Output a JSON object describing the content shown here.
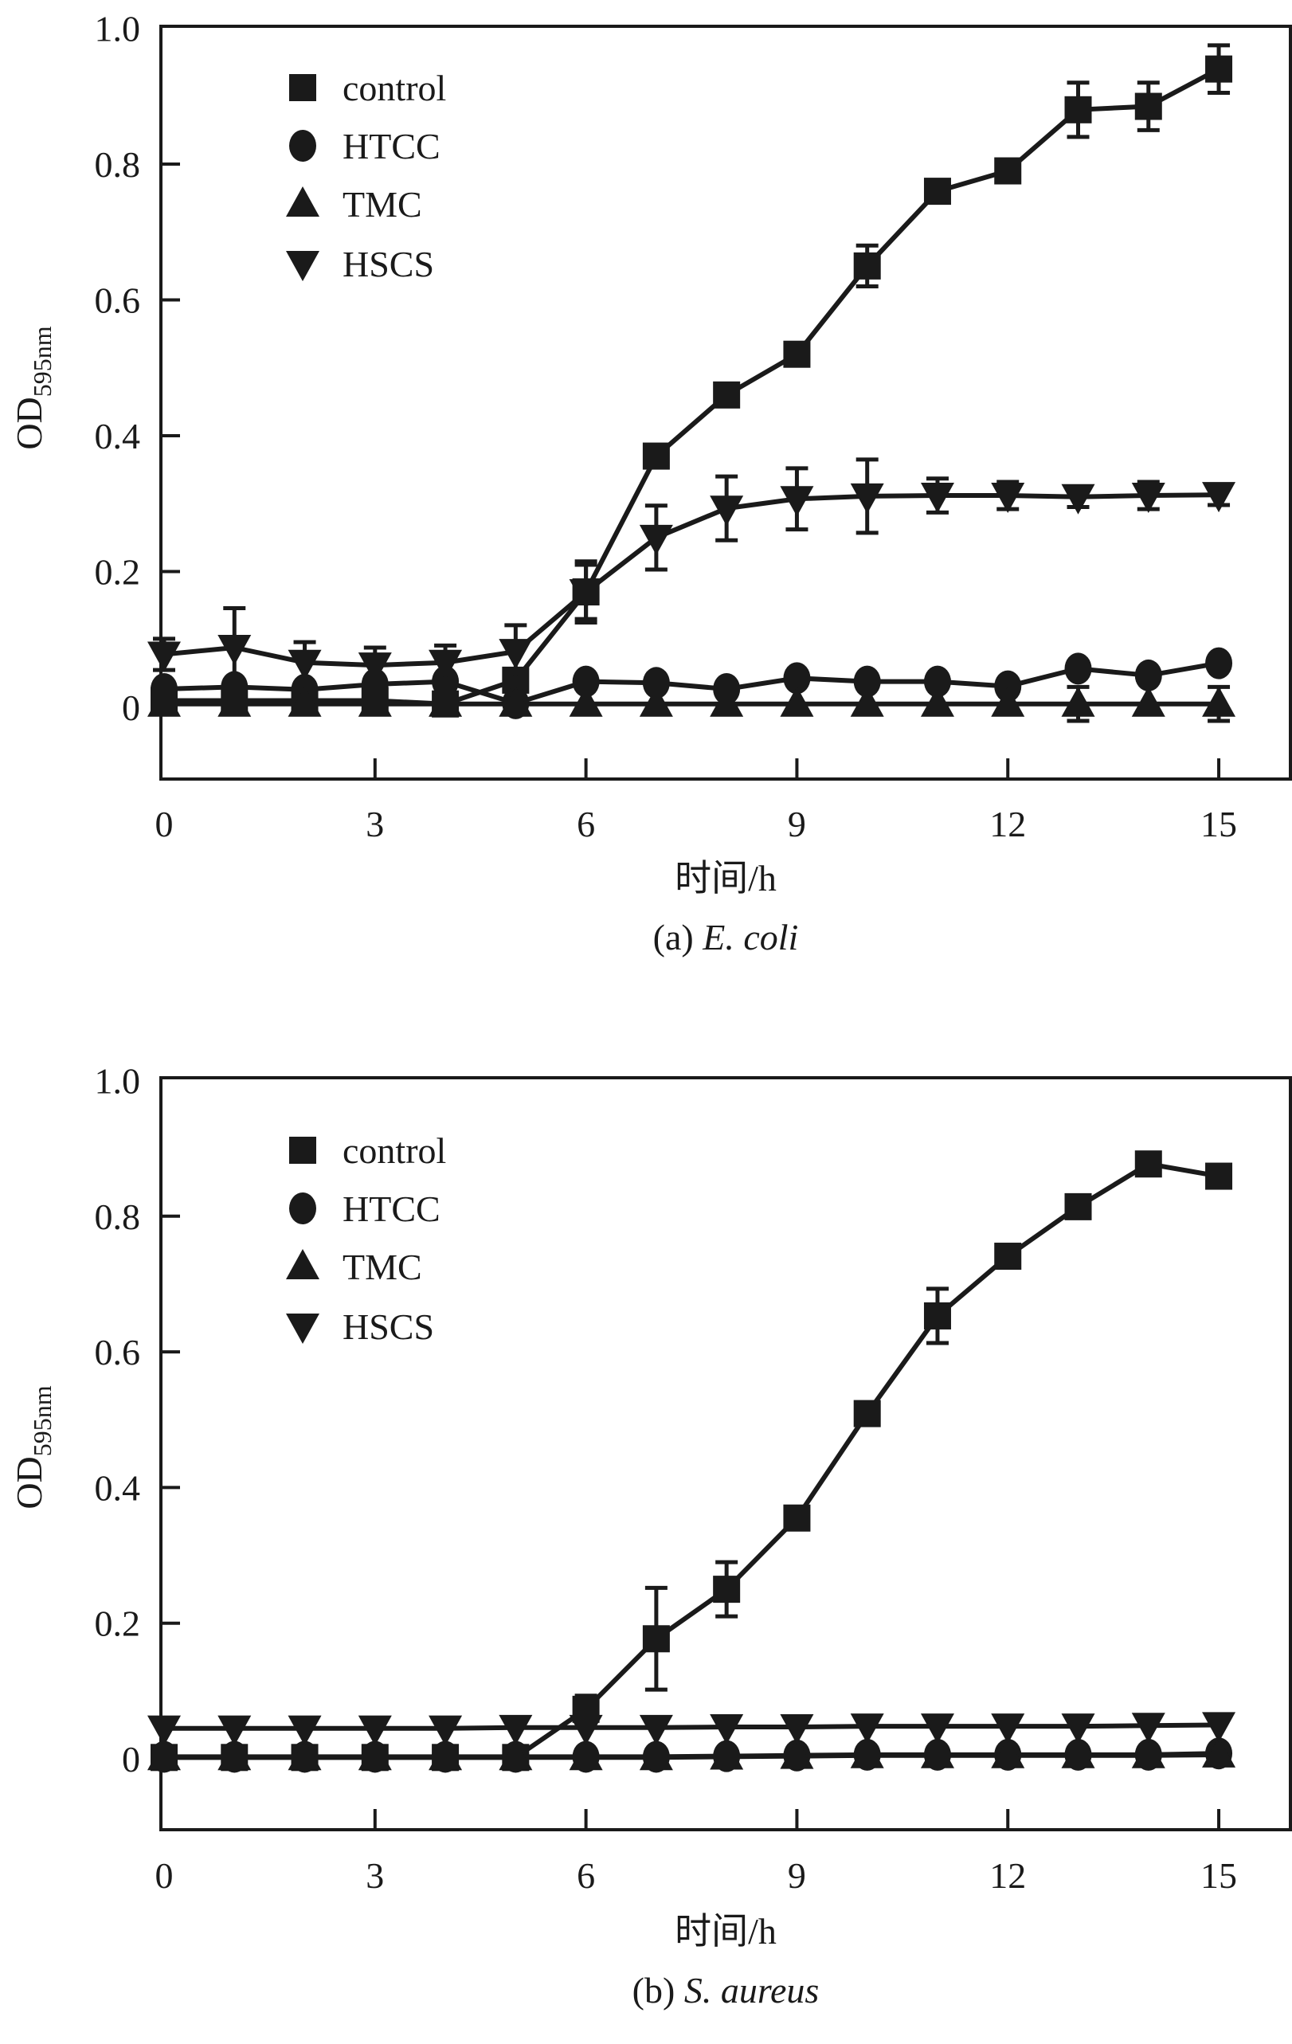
{
  "chart_data": [
    {
      "type": "line",
      "panel": "a",
      "title": "",
      "caption_prefix": "(a)",
      "caption_species": "E. coli",
      "xlabel": "时间/h",
      "ylabel": "OD",
      "ylabel_subscript": "595nm",
      "xlim": [
        0,
        16
      ],
      "ylim": [
        -0.1,
        1.0
      ],
      "xticks": [
        0,
        3,
        6,
        9,
        12,
        15
      ],
      "xtick_labels": [
        "0",
        "3",
        "6",
        "9",
        "12",
        "15"
      ],
      "yticks": [
        0,
        0.2,
        0.4,
        0.6,
        0.8,
        1.0
      ],
      "ytick_labels": [
        "0",
        "0.2",
        "0.4",
        "0.6",
        "0.8",
        "1.0"
      ],
      "grid": false,
      "legend_position": "top-left",
      "x": [
        0,
        1,
        2,
        3,
        4,
        5,
        6,
        7,
        8,
        9,
        10,
        11,
        12,
        13,
        14,
        15
      ],
      "series": [
        {
          "name": "control",
          "marker": "square",
          "values": [
            0.01,
            0.01,
            0.01,
            0.01,
            0.005,
            0.04,
            0.17,
            0.37,
            0.46,
            0.52,
            0.65,
            0.76,
            0.79,
            0.88,
            0.885,
            0.94
          ],
          "errors": [
            0.01,
            0.01,
            0.01,
            0.01,
            0.01,
            0.01,
            0.04,
            0.0,
            0.0,
            0.0,
            0.03,
            0.0,
            0.0,
            0.04,
            0.035,
            0.035
          ]
        },
        {
          "name": "HTCC",
          "marker": "circle",
          "values": [
            0.027,
            0.03,
            0.026,
            0.034,
            0.038,
            0.006,
            0.038,
            0.036,
            0.027,
            0.043,
            0.038,
            0.038,
            0.031,
            0.057,
            0.047,
            0.065
          ],
          "errors": [
            0.01,
            0.0,
            0.01,
            0.0,
            0.0,
            0.0,
            0.0,
            0.0,
            0.0,
            0.0,
            0.008,
            0.0,
            0.0,
            0.01,
            0.008,
            0.0
          ]
        },
        {
          "name": "TMC",
          "marker": "triangle-up",
          "values": [
            0.005,
            0.005,
            0.005,
            0.005,
            0.005,
            0.005,
            0.005,
            0.005,
            0.005,
            0.005,
            0.005,
            0.005,
            0.005,
            0.005,
            0.005,
            0.005
          ],
          "errors": [
            0.0,
            0.0,
            0.0,
            0.0,
            0.0,
            0.0,
            0.0,
            0.0,
            0.0,
            0.0,
            0.0,
            0.0,
            0.0,
            0.025,
            0.0,
            0.025
          ]
        },
        {
          "name": "HSCS",
          "marker": "triangle-down",
          "values": [
            0.078,
            0.088,
            0.066,
            0.062,
            0.066,
            0.082,
            0.17,
            0.25,
            0.293,
            0.307,
            0.311,
            0.312,
            0.312,
            0.31,
            0.312,
            0.313
          ],
          "errors": [
            0.023,
            0.058,
            0.03,
            0.026,
            0.025,
            0.039,
            0.045,
            0.047,
            0.047,
            0.045,
            0.054,
            0.025,
            0.02,
            0.015,
            0.02,
            0.015
          ]
        }
      ]
    },
    {
      "type": "line",
      "panel": "b",
      "title": "",
      "caption_prefix": "(b)",
      "caption_species": "S. aureus",
      "xlabel": "时间/h",
      "ylabel": "OD",
      "ylabel_subscript": "595nm",
      "xlim": [
        0,
        16
      ],
      "ylim": [
        -0.1,
        1.0
      ],
      "xticks": [
        0,
        3,
        6,
        9,
        12,
        15
      ],
      "xtick_labels": [
        "0",
        "3",
        "6",
        "9",
        "12",
        "15"
      ],
      "yticks": [
        0,
        0.2,
        0.4,
        0.6,
        0.8,
        1.0
      ],
      "ytick_labels": [
        "0",
        "0.2",
        "0.4",
        "0.6",
        "0.8",
        "1.0"
      ],
      "grid": false,
      "legend_position": "top-left",
      "x": [
        0,
        1,
        2,
        3,
        4,
        5,
        6,
        7,
        8,
        9,
        10,
        11,
        12,
        13,
        14,
        15
      ],
      "series": [
        {
          "name": "control",
          "marker": "square",
          "values": [
            0.002,
            0.002,
            0.002,
            0.002,
            0.002,
            0.002,
            0.073,
            0.177,
            0.25,
            0.355,
            0.509,
            0.653,
            0.741,
            0.814,
            0.877,
            0.859
          ],
          "errors": [
            0.0,
            0.0,
            0.0,
            0.0,
            0.0,
            0.0,
            0.02,
            0.075,
            0.04,
            0.0,
            0.0,
            0.04,
            0.0,
            0.0,
            0.0,
            0.0
          ]
        },
        {
          "name": "HTCC",
          "marker": "circle",
          "values": [
            0.003,
            0.003,
            0.003,
            0.003,
            0.003,
            0.003,
            0.003,
            0.003,
            0.004,
            0.005,
            0.006,
            0.006,
            0.006,
            0.006,
            0.006,
            0.008
          ],
          "errors": [
            0.0,
            0.0,
            0.0,
            0.0,
            0.0,
            0.0,
            0.0,
            0.0,
            0.0,
            0.0,
            0.0,
            0.0,
            0.0,
            0.0,
            0.0,
            0.0
          ]
        },
        {
          "name": "TMC",
          "marker": "triangle-up",
          "values": [
            0.002,
            0.002,
            0.002,
            0.002,
            0.002,
            0.002,
            0.002,
            0.002,
            0.003,
            0.004,
            0.005,
            0.005,
            0.005,
            0.005,
            0.005,
            0.006
          ],
          "errors": [
            0.0,
            0.0,
            0.0,
            0.0,
            0.0,
            0.0,
            0.0,
            0.0,
            0.0,
            0.0,
            0.0,
            0.0,
            0.0,
            0.0,
            0.0,
            0.0
          ]
        },
        {
          "name": "HSCS",
          "marker": "triangle-down",
          "values": [
            0.045,
            0.045,
            0.045,
            0.045,
            0.045,
            0.046,
            0.046,
            0.046,
            0.047,
            0.047,
            0.048,
            0.048,
            0.048,
            0.048,
            0.049,
            0.05
          ],
          "errors": [
            0.0,
            0.0,
            0.0,
            0.0,
            0.0,
            0.0,
            0.0,
            0.0,
            0.0,
            0.0,
            0.0,
            0.0,
            0.0,
            0.0,
            0.0,
            0.0
          ]
        }
      ]
    }
  ]
}
